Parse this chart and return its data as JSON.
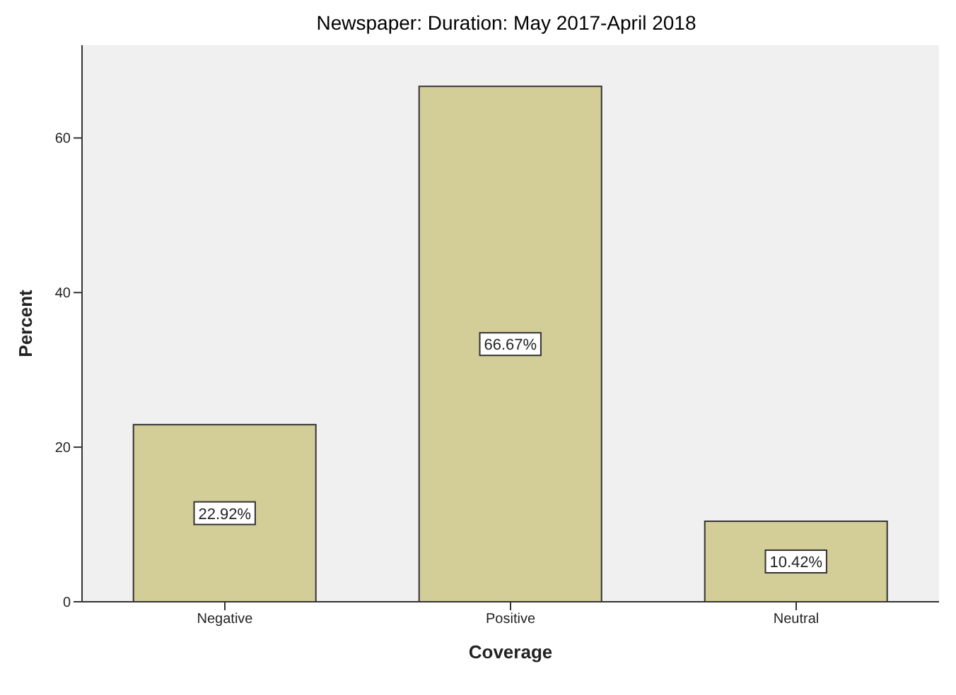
{
  "chart_data": {
    "type": "bar",
    "title": "Newspaper: Duration: May 2017-April 2018",
    "xlabel": "Coverage",
    "ylabel": "Percent",
    "categories": [
      "Negative",
      "Positive",
      "Neutral"
    ],
    "values": [
      22.92,
      66.67,
      10.42
    ],
    "value_labels": [
      "22.92%",
      "66.67%",
      "10.42%"
    ],
    "color": "#d3cd97",
    "ylim": [
      0,
      72
    ],
    "yticks": [
      0,
      20,
      40,
      60
    ],
    "grid": false,
    "legend": false
  }
}
